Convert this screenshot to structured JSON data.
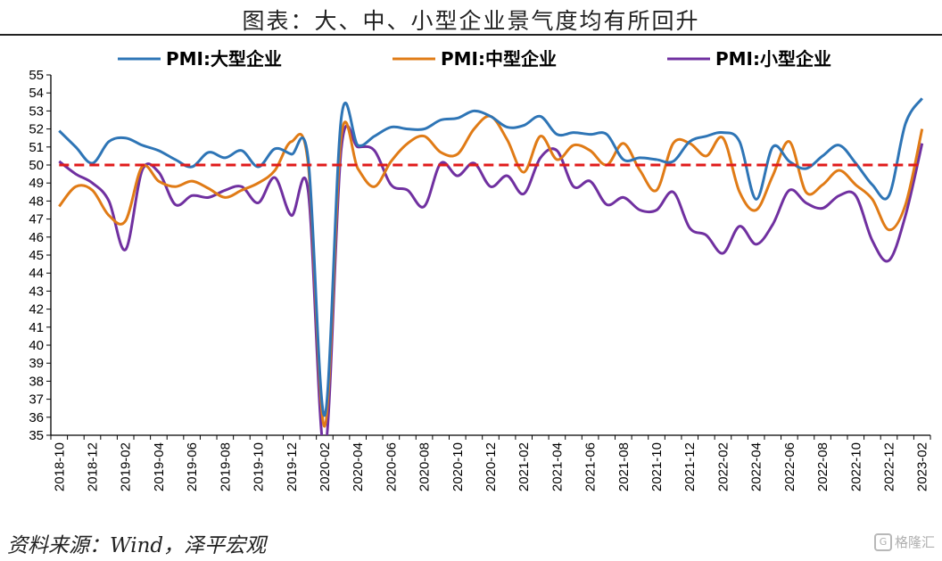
{
  "title": "图表：大、中、小型企业景气度均有所回升",
  "source": "资料来源：Wind，泽平宏观",
  "watermark": {
    "text": "格隆汇",
    "icon": "g-logo-icon"
  },
  "colors": {
    "large": "#2e75b6",
    "medium": "#e07b16",
    "small": "#7030a0",
    "reference": "#e01b1b"
  },
  "chart_data": {
    "type": "line",
    "title": "图表：大、中、小型企业景气度均有所回升",
    "xlabel": "",
    "ylabel": "",
    "ylim": [
      35,
      55
    ],
    "reference_line": 50,
    "grid": false,
    "legend_position": "top",
    "x": [
      "2018-10",
      "2018-11",
      "2018-12",
      "2019-01",
      "2019-02",
      "2019-03",
      "2019-04",
      "2019-05",
      "2019-06",
      "2019-07",
      "2019-08",
      "2019-09",
      "2019-10",
      "2019-11",
      "2019-12",
      "2020-01",
      "2020-02",
      "2020-03",
      "2020-04",
      "2020-05",
      "2020-06",
      "2020-07",
      "2020-08",
      "2020-09",
      "2020-10",
      "2020-11",
      "2020-12",
      "2021-01",
      "2021-02",
      "2021-03",
      "2021-04",
      "2021-05",
      "2021-06",
      "2021-07",
      "2021-08",
      "2021-09",
      "2021-10",
      "2021-11",
      "2021-12",
      "2022-01",
      "2022-02",
      "2022-03",
      "2022-04",
      "2022-05",
      "2022-06",
      "2022-07",
      "2022-08",
      "2022-09",
      "2022-10",
      "2022-11",
      "2022-12",
      "2023-01",
      "2023-02"
    ],
    "xtick_labels": [
      "2018-10",
      "2018-12",
      "2019-02",
      "2019-04",
      "2019-06",
      "2019-08",
      "2019-10",
      "2019-12",
      "2020-02",
      "2020-04",
      "2020-06",
      "2020-08",
      "2020-10",
      "2020-12",
      "2021-02",
      "2021-04",
      "2021-06",
      "2021-08",
      "2021-10",
      "2021-12",
      "2022-02",
      "2022-04",
      "2022-06",
      "2022-08",
      "2022-10",
      "2022-12",
      "2023-02"
    ],
    "ytick_labels": [
      "35",
      "36",
      "37",
      "38",
      "39",
      "40",
      "41",
      "42",
      "43",
      "44",
      "45",
      "46",
      "47",
      "48",
      "49",
      "50",
      "51",
      "52",
      "53",
      "54",
      "55"
    ],
    "series": [
      {
        "name": "PMI:大型企业",
        "color": "#2e75b6",
        "values": [
          51.9,
          51.0,
          50.1,
          51.3,
          51.5,
          51.1,
          50.8,
          50.3,
          49.9,
          50.7,
          50.4,
          50.8,
          49.9,
          50.9,
          50.6,
          50.4,
          36.1,
          52.6,
          51.1,
          51.6,
          52.1,
          52.0,
          52.0,
          52.5,
          52.6,
          53.0,
          52.7,
          52.1,
          52.2,
          52.7,
          51.7,
          51.8,
          51.7,
          51.7,
          50.3,
          50.4,
          50.3,
          50.2,
          51.3,
          51.6,
          51.8,
          51.3,
          48.1,
          51.0,
          50.2,
          49.8,
          50.5,
          51.1,
          50.1,
          48.9,
          48.3,
          52.3,
          53.7
        ]
      },
      {
        "name": "PMI:中型企业",
        "color": "#e07b16",
        "values": [
          47.7,
          48.8,
          48.6,
          47.2,
          46.9,
          49.9,
          49.1,
          48.8,
          49.1,
          48.7,
          48.2,
          48.6,
          49.0,
          49.7,
          51.3,
          50.1,
          35.5,
          51.6,
          49.8,
          48.8,
          50.2,
          51.2,
          51.6,
          50.7,
          50.6,
          52.0,
          52.7,
          51.4,
          49.6,
          51.6,
          50.3,
          51.1,
          50.8,
          50.0,
          51.2,
          49.7,
          48.6,
          51.2,
          51.2,
          50.5,
          51.5,
          48.5,
          47.5,
          49.4,
          51.3,
          48.5,
          48.9,
          49.7,
          48.9,
          48.1,
          46.4,
          47.8,
          52.0
        ]
      },
      {
        "name": "PMI:小型企业",
        "color": "#7030a0",
        "values": [
          50.2,
          49.5,
          49.0,
          48.0,
          45.3,
          49.7,
          49.6,
          47.8,
          48.3,
          48.2,
          48.6,
          48.8,
          47.9,
          49.3,
          47.2,
          48.6,
          34.1,
          50.9,
          51.0,
          50.8,
          48.9,
          48.6,
          47.7,
          50.1,
          49.4,
          50.1,
          48.8,
          49.4,
          48.4,
          50.4,
          50.8,
          48.8,
          49.1,
          47.8,
          48.2,
          47.5,
          47.5,
          48.5,
          46.5,
          46.1,
          45.1,
          46.6,
          45.6,
          46.7,
          48.6,
          47.9,
          47.6,
          48.3,
          48.3,
          45.8,
          44.7,
          47.2,
          51.2
        ]
      }
    ]
  }
}
